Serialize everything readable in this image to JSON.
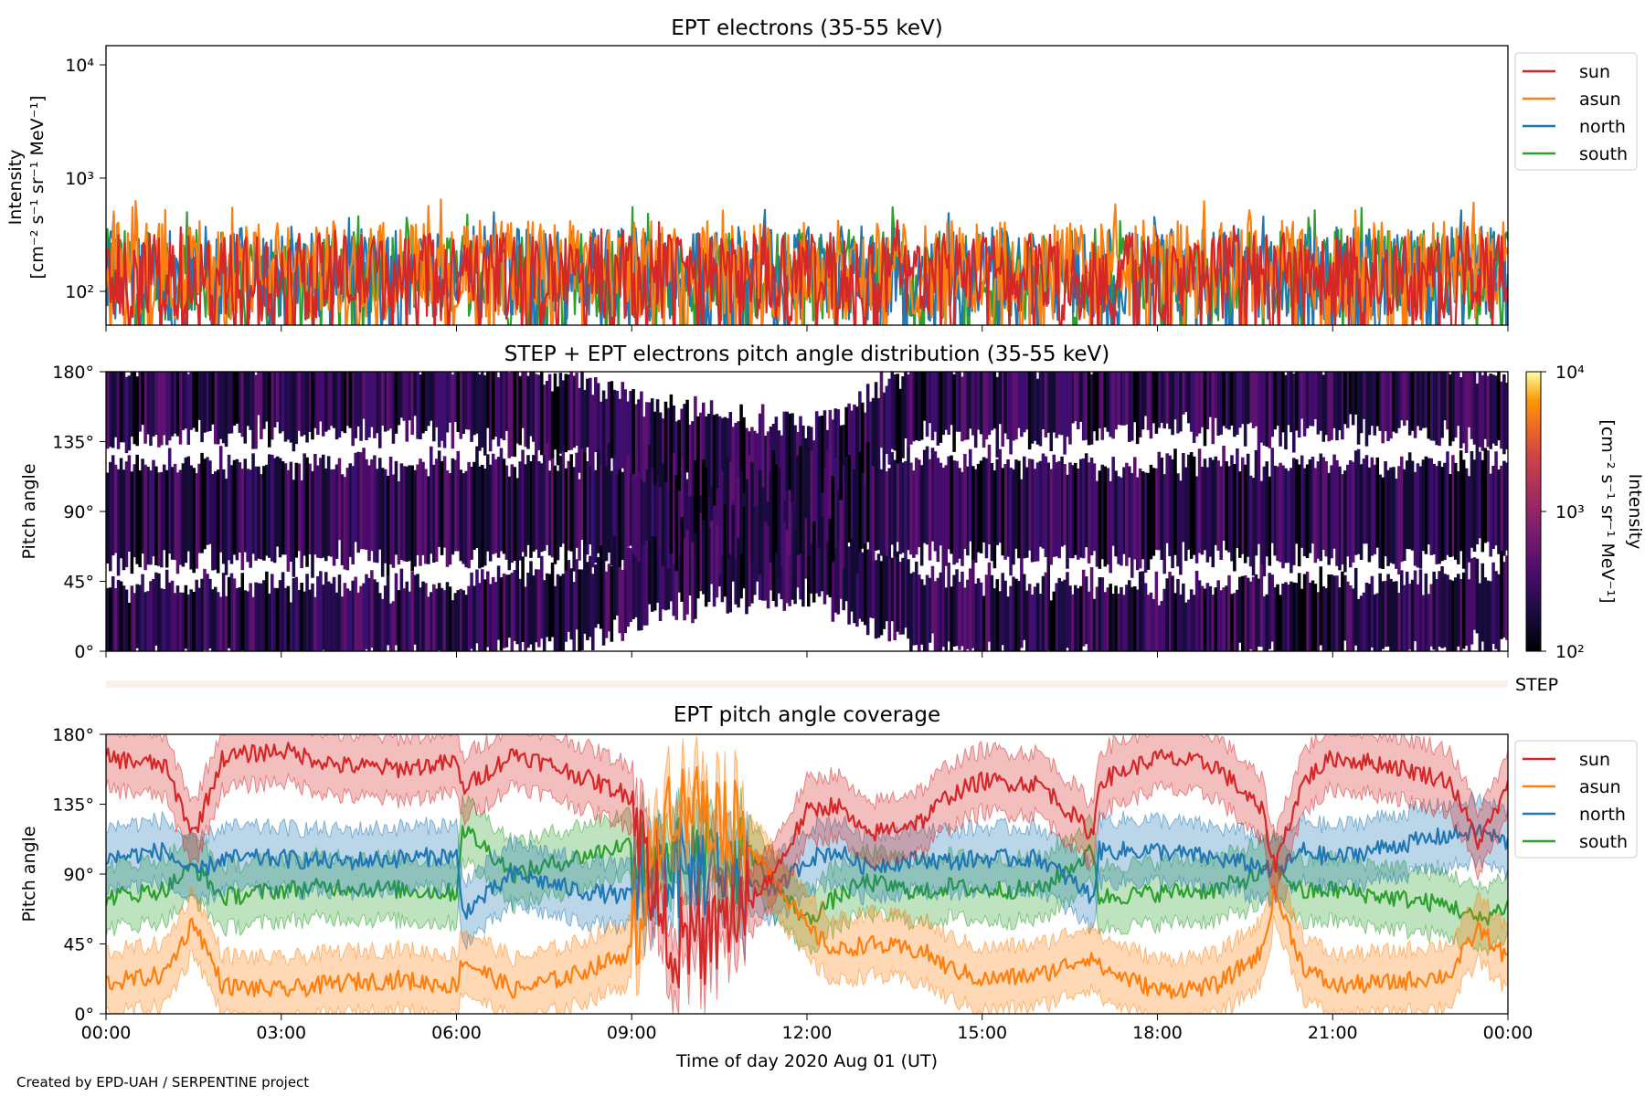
{
  "figure": {
    "credit": "Created by EPD-UAH / SERPENTINE project",
    "xlabel": "Time of day 2020 Aug 01 (UT)",
    "xticks": [
      "00:00",
      "03:00",
      "06:00",
      "09:00",
      "12:00",
      "15:00",
      "18:00",
      "21:00",
      "00:00"
    ]
  },
  "colors": {
    "sun": "#d62728",
    "asun": "#ff7f0e",
    "north": "#1f77b4",
    "south": "#2ca02c"
  },
  "legend": [
    "sun",
    "asun",
    "north",
    "south"
  ],
  "panel1": {
    "title": "EPT electrons (35-55 keV)",
    "ylabel_line1": "Intensity",
    "ylabel_line2": "[cm⁻² s⁻¹ sr⁻¹ MeV⁻¹]",
    "yticks": {
      "t2": "10²",
      "t3": "10³",
      "t4": "10⁴"
    }
  },
  "panel2": {
    "title": "STEP + EPT electrons pitch angle distribution (35-55 keV)",
    "ylabel": "Pitch angle",
    "yticks": [
      "0°",
      "45°",
      "90°",
      "135°",
      "180°"
    ],
    "cbar_label_line1": "Intensity",
    "cbar_label_line2": "[cm⁻² s⁻¹ sr⁻¹ MeV⁻¹]",
    "cbar_ticks": {
      "t2": "10²",
      "t3": "10³",
      "t4": "10⁴"
    }
  },
  "step_strip": {
    "label": "STEP"
  },
  "panel3": {
    "title": "EPT pitch angle coverage",
    "ylabel": "Pitch angle",
    "yticks": [
      "0°",
      "45°",
      "90°",
      "135°",
      "180°"
    ]
  },
  "chart_data": [
    {
      "type": "line",
      "title": "EPT electrons (35-55 keV)",
      "xlabel": "Time of day 2020 Aug 01 (UT)",
      "ylabel": "Intensity [cm⁻² s⁻¹ sr⁻¹ MeV⁻¹]",
      "yscale": "log",
      "ylim": [
        55,
        15000
      ],
      "xlim": [
        "2020-08-01 00:00",
        "2020-08-02 00:00"
      ],
      "legend": "upper-right outside",
      "series": [
        {
          "name": "sun",
          "typical_range": [
            60,
            350
          ],
          "peak": 500
        },
        {
          "name": "asun",
          "typical_range": [
            60,
            450
          ],
          "peak": 700
        },
        {
          "name": "north",
          "typical_range": [
            60,
            400
          ],
          "peak": 620
        },
        {
          "name": "south",
          "typical_range": [
            60,
            380
          ],
          "peak": 600
        }
      ]
    },
    {
      "type": "heatmap",
      "title": "STEP + EPT electrons pitch angle distribution (35-55 keV)",
      "ylabel": "Pitch angle",
      "ylim": [
        0,
        180
      ],
      "xlim": [
        "2020-08-01 00:00",
        "2020-08-02 00:00"
      ],
      "colorbar": {
        "label": "Intensity [cm⁻² s⁻¹ sr⁻¹ MeV⁻¹]",
        "scale": "log",
        "range": [
          100,
          10000
        ],
        "colormap": "inferno"
      },
      "colored_band_centers_deg_by_hour": {
        "hours": [
          0,
          3,
          6,
          8,
          10,
          12,
          14,
          16,
          18,
          20,
          22,
          24
        ],
        "upper_band": [
          160,
          165,
          165,
          150,
          130,
          118,
          165,
          160,
          170,
          163,
          168,
          155
        ],
        "mid_band": [
          90,
          90,
          90,
          92,
          90,
          90,
          92,
          90,
          90,
          90,
          90,
          95
        ],
        "lower_band": [
          18,
          18,
          18,
          30,
          55,
          62,
          25,
          20,
          15,
          22,
          18,
          30
        ]
      }
    },
    {
      "type": "line",
      "title": "EPT pitch angle coverage",
      "xlabel": "Time of day 2020 Aug 01 (UT)",
      "ylabel": "Pitch angle",
      "ylim": [
        0,
        180
      ],
      "xlim": [
        "2020-08-01 00:00",
        "2020-08-02 00:00"
      ],
      "legend": "upper-right outside",
      "x_hours": [
        0,
        1,
        1.5,
        2,
        3,
        4,
        5,
        6,
        6.1,
        7,
        8,
        9,
        9.5,
        10,
        10.5,
        11,
        11.5,
        12,
        12.5,
        13,
        14,
        14.4,
        15,
        16,
        16.9,
        17,
        18,
        19,
        19.8,
        20,
        20.5,
        21,
        22,
        23,
        23.5,
        24
      ],
      "series": [
        {
          "name": "sun",
          "values": [
            165,
            160,
            115,
            165,
            170,
            160,
            158,
            162,
            145,
            168,
            155,
            140,
            60,
            40,
            55,
            70,
            95,
            130,
            135,
            115,
            125,
            140,
            150,
            148,
            115,
            150,
            165,
            160,
            130,
            95,
            150,
            165,
            160,
            150,
            110,
            145
          ]
        },
        {
          "name": "asun",
          "values": [
            20,
            25,
            60,
            18,
            15,
            20,
            22,
            18,
            35,
            15,
            25,
            40,
            130,
            140,
            130,
            110,
            85,
            55,
            40,
            45,
            40,
            30,
            22,
            25,
            38,
            30,
            15,
            18,
            40,
            80,
            30,
            18,
            20,
            25,
            55,
            35
          ]
        },
        {
          "name": "north",
          "values": [
            100,
            105,
            90,
            100,
            100,
            98,
            100,
            102,
            65,
            90,
            80,
            75,
            95,
            90,
            95,
            85,
            80,
            100,
            105,
            95,
            100,
            98,
            100,
            100,
            75,
            105,
            105,
            100,
            95,
            90,
            105,
            100,
            108,
            115,
            118,
            110
          ]
        },
        {
          "name": "south",
          "values": [
            75,
            80,
            95,
            75,
            80,
            82,
            80,
            78,
            120,
            90,
            100,
            110,
            85,
            95,
            100,
            105,
            80,
            60,
            75,
            85,
            78,
            82,
            80,
            80,
            105,
            75,
            78,
            80,
            90,
            95,
            78,
            80,
            75,
            70,
            60,
            70
          ]
        }
      ]
    }
  ]
}
